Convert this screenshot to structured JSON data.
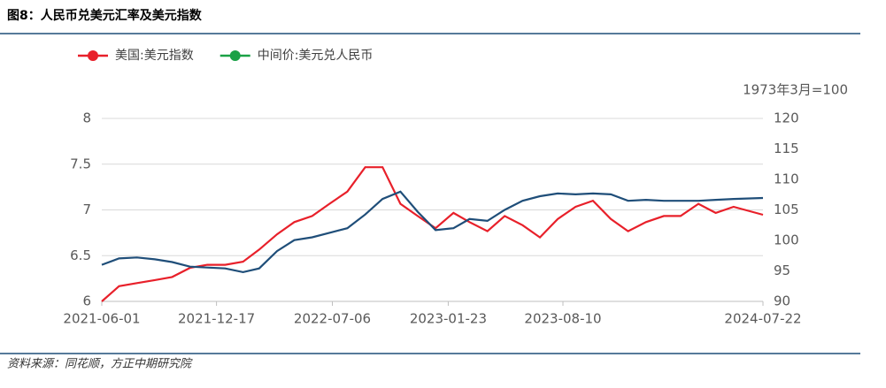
{
  "chart_data": {
    "type": "line",
    "title": "图8：人民币兑美元汇率及美元指数",
    "y2_label": "1973年3月=100",
    "source": "资料来源：同花顺，方正中期研究院",
    "x": [
      "2021-06-01",
      "2021-07-01",
      "2021-08-01",
      "2021-09-01",
      "2021-10-01",
      "2021-11-01",
      "2021-12-01",
      "2022-01-01",
      "2022-02-01",
      "2022-03-01",
      "2022-04-01",
      "2022-05-01",
      "2022-06-01",
      "2022-07-01",
      "2022-08-01",
      "2022-09-01",
      "2022-10-01",
      "2022-11-01",
      "2022-12-01",
      "2023-01-01",
      "2023-02-01",
      "2023-03-01",
      "2023-04-01",
      "2023-05-01",
      "2023-06-01",
      "2023-07-01",
      "2023-08-01",
      "2023-09-01",
      "2023-10-01",
      "2023-11-01",
      "2023-12-01",
      "2024-01-01",
      "2024-02-01",
      "2024-03-01",
      "2024-04-01",
      "2024-05-01",
      "2024-06-01",
      "2024-07-22"
    ],
    "series": [
      {
        "name": "美国:美元指数",
        "color": "#e8202a",
        "legend_color": "#e8202a",
        "axis": "y2",
        "values": [
          90,
          92.5,
          93,
          93.5,
          94,
          95.5,
          96,
          96,
          96.5,
          98.5,
          101,
          103,
          104,
          106,
          108,
          112,
          112,
          106,
          104,
          102,
          104.5,
          103,
          101.5,
          104,
          102.5,
          100.5,
          103.5,
          105.5,
          106.5,
          103.5,
          101.5,
          103,
          104,
          104,
          106,
          104.5,
          105.5,
          104.2
        ]
      },
      {
        "name": "中间价:美元兑人民币",
        "color": "#1f4e79",
        "legend_color": "#1aa146",
        "axis": "y",
        "values": [
          6.4,
          6.47,
          6.48,
          6.46,
          6.43,
          6.38,
          6.37,
          6.36,
          6.32,
          6.36,
          6.55,
          6.67,
          6.7,
          6.75,
          6.8,
          6.95,
          7.12,
          7.2,
          6.98,
          6.78,
          6.8,
          6.9,
          6.88,
          7,
          7.1,
          7.15,
          7.18,
          7.17,
          7.18,
          7.17,
          7.1,
          7.11,
          7.1,
          7.1,
          7.1,
          7.11,
          7.12,
          7.13
        ]
      }
    ],
    "xlim": [
      "2021-06-01",
      "2024-07-22"
    ],
    "xticks": [
      "2021-06-01",
      "2021-12-17",
      "2022-07-06",
      "2023-01-23",
      "2023-08-10",
      "2024-07-22"
    ],
    "ylim": [
      6,
      8
    ],
    "yticks": [
      6,
      6.5,
      7,
      7.5,
      8
    ],
    "y2lim": [
      90,
      120
    ],
    "y2ticks": [
      90,
      95,
      100,
      105,
      110,
      115,
      120
    ],
    "grid": true
  }
}
